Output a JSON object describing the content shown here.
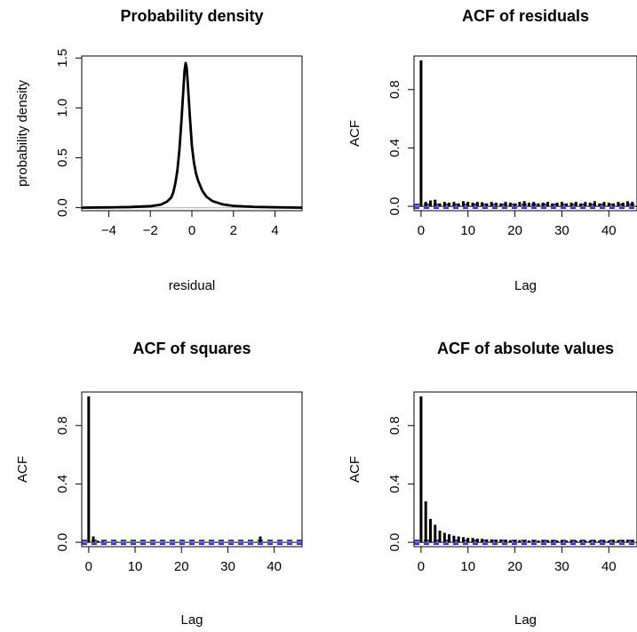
{
  "chart_data": [
    {
      "type": "line",
      "title": "Probability density",
      "xlabel": "residual",
      "ylabel": "probability density",
      "xlim": [
        -5.3,
        5.3
      ],
      "ylim": [
        -0.03,
        1.52
      ],
      "xticks": [
        -4,
        -2,
        0,
        2,
        4
      ],
      "xtick_labels": [
        "−4",
        "−2",
        "0",
        "2",
        "4"
      ],
      "yticks": [
        0.0,
        0.5,
        1.0,
        1.5
      ],
      "ytick_labels": [
        "0.0",
        "0.5",
        "1.0",
        "1.5"
      ],
      "reference_line": {
        "y": 0,
        "color": "#bebebe"
      },
      "x": [
        -5.3,
        -4.0,
        -3.0,
        -2.0,
        -1.5,
        -1.2,
        -1.0,
        -0.9,
        -0.8,
        -0.7,
        -0.6,
        -0.5,
        -0.4,
        -0.35,
        -0.3,
        -0.25,
        -0.2,
        -0.1,
        0.0,
        0.1,
        0.2,
        0.3,
        0.5,
        0.7,
        1.0,
        1.5,
        2.0,
        3.0,
        4.0,
        5.3
      ],
      "y": [
        0.0,
        0.003,
        0.006,
        0.015,
        0.03,
        0.06,
        0.1,
        0.15,
        0.24,
        0.37,
        0.58,
        0.88,
        1.22,
        1.38,
        1.45,
        1.4,
        1.25,
        0.92,
        0.62,
        0.45,
        0.34,
        0.27,
        0.17,
        0.11,
        0.065,
        0.032,
        0.018,
        0.008,
        0.004,
        0.0
      ]
    },
    {
      "type": "bar",
      "title": "ACF of residuals",
      "xlabel": "Lag",
      "ylabel": "ACF",
      "xlim": [
        -1.5,
        46
      ],
      "ylim": [
        -0.03,
        1.03
      ],
      "xticks": [
        0,
        10,
        20,
        30,
        40
      ],
      "xtick_labels": [
        "0",
        "10",
        "20",
        "30",
        "40"
      ],
      "yticks": [
        0.0,
        0.4,
        0.8
      ],
      "ytick_labels": [
        "0.0",
        "0.4",
        "0.8"
      ],
      "confidence_band": 0.012,
      "band_color": "#0000ff",
      "lags": [
        0,
        1,
        2,
        3,
        4,
        5,
        6,
        7,
        8,
        9,
        10,
        11,
        12,
        13,
        14,
        15,
        16,
        17,
        18,
        19,
        20,
        21,
        22,
        23,
        24,
        25,
        26,
        27,
        28,
        29,
        30,
        31,
        32,
        33,
        34,
        35,
        36,
        37,
        38,
        39,
        40,
        41,
        42,
        43,
        44,
        45
      ],
      "values": [
        1.0,
        0.03,
        0.04,
        0.045,
        0.02,
        0.03,
        0.025,
        0.03,
        0.02,
        0.035,
        0.03,
        0.025,
        0.03,
        0.028,
        0.02,
        0.03,
        0.025,
        0.02,
        0.03,
        0.025,
        0.02,
        0.03,
        0.035,
        0.025,
        0.03,
        0.02,
        0.025,
        0.03,
        0.02,
        0.025,
        0.03,
        0.02,
        0.025,
        0.03,
        0.02,
        0.03,
        0.025,
        0.035,
        0.02,
        0.03,
        0.025,
        0.02,
        0.03,
        0.025,
        0.035,
        0.03
      ]
    },
    {
      "type": "bar",
      "title": "ACF of squares",
      "xlabel": "Lag",
      "ylabel": "ACF",
      "xlim": [
        -1.5,
        46
      ],
      "ylim": [
        -0.03,
        1.03
      ],
      "xticks": [
        0,
        10,
        20,
        30,
        40
      ],
      "xtick_labels": [
        "0",
        "10",
        "20",
        "30",
        "40"
      ],
      "yticks": [
        0.0,
        0.4,
        0.8
      ],
      "ytick_labels": [
        "0.0",
        "0.4",
        "0.8"
      ],
      "confidence_band": 0.012,
      "band_color": "#0000ff",
      "lags": [
        0,
        1,
        2,
        3,
        4,
        5,
        6,
        7,
        8,
        9,
        10,
        11,
        12,
        13,
        14,
        15,
        16,
        17,
        18,
        19,
        20,
        21,
        22,
        23,
        24,
        25,
        26,
        27,
        28,
        29,
        30,
        31,
        32,
        33,
        34,
        35,
        36,
        37,
        38,
        39,
        40,
        41,
        42,
        43,
        44,
        45
      ],
      "values": [
        1.0,
        0.04,
        0.01,
        0.005,
        0.004,
        0.003,
        0.004,
        0.003,
        0.002,
        0.003,
        0.002,
        0.003,
        0.002,
        0.003,
        0.002,
        0.002,
        0.003,
        0.002,
        0.002,
        0.003,
        0.002,
        0.002,
        0.003,
        0.002,
        0.002,
        0.003,
        0.002,
        0.002,
        0.003,
        0.002,
        0.002,
        0.003,
        0.002,
        0.002,
        0.003,
        0.002,
        0.002,
        0.04,
        0.003,
        0.002,
        0.002,
        0.003,
        0.002,
        0.002,
        0.003,
        0.002
      ]
    },
    {
      "type": "bar",
      "title": "ACF of absolute values",
      "xlabel": "Lag",
      "ylabel": "ACF",
      "xlim": [
        -1.5,
        46
      ],
      "ylim": [
        -0.03,
        1.03
      ],
      "xticks": [
        0,
        10,
        20,
        30,
        40
      ],
      "xtick_labels": [
        "0",
        "10",
        "20",
        "30",
        "40"
      ],
      "yticks": [
        0.0,
        0.4,
        0.8
      ],
      "ytick_labels": [
        "0.0",
        "0.4",
        "0.8"
      ],
      "confidence_band": 0.012,
      "band_color": "#0000ff",
      "lags": [
        0,
        1,
        2,
        3,
        4,
        5,
        6,
        7,
        8,
        9,
        10,
        11,
        12,
        13,
        14,
        15,
        16,
        17,
        18,
        19,
        20,
        21,
        22,
        23,
        24,
        25,
        26,
        27,
        28,
        29,
        30,
        31,
        32,
        33,
        34,
        35,
        36,
        37,
        38,
        39,
        40,
        41,
        42,
        43,
        44,
        45
      ],
      "values": [
        1.0,
        0.28,
        0.16,
        0.12,
        0.08,
        0.065,
        0.055,
        0.045,
        0.04,
        0.035,
        0.03,
        0.03,
        0.025,
        0.025,
        0.02,
        0.02,
        0.018,
        0.02,
        0.018,
        0.015,
        0.015,
        0.015,
        0.015,
        0.012,
        0.015,
        0.012,
        0.012,
        0.015,
        0.012,
        0.012,
        0.012,
        0.012,
        0.012,
        0.012,
        0.012,
        0.012,
        0.012,
        0.015,
        0.012,
        0.012,
        0.012,
        0.015,
        0.015,
        0.012,
        0.018,
        0.015
      ]
    }
  ]
}
